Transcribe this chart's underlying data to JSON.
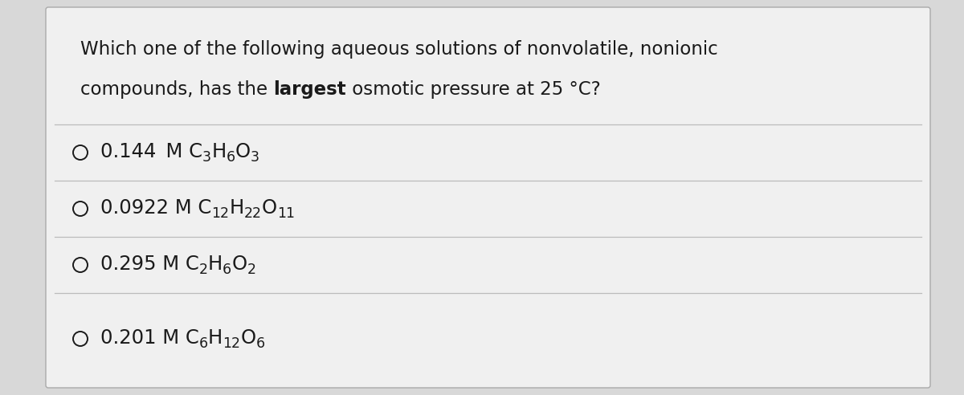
{
  "bg_color": "#d8d8d8",
  "card_bg": "#f0f0f0",
  "border_color": "#aaaaaa",
  "divider_color": "#bbbbbb",
  "text_color": "#1a1a1a",
  "question_line1": "Which one of the following aqueous solutions of nonvolatile, nonionic",
  "question_line2_pre": "compounds, has the ",
  "question_line2_bold": "largest",
  "question_line2_post": " osmotic pressure at 25 °C?",
  "options": [
    {
      "value": "0.144 M C",
      "formula": [
        {
          "t": "3",
          "s": true
        },
        {
          "t": "H",
          "s": false
        },
        {
          "t": "6",
          "s": true
        },
        {
          "t": "O",
          "s": false
        },
        {
          "t": "3",
          "s": true
        }
      ]
    },
    {
      "value": "0.0922 M C",
      "formula": [
        {
          "t": "12",
          "s": true
        },
        {
          "t": "H",
          "s": false
        },
        {
          "t": "22",
          "s": true
        },
        {
          "t": "O",
          "s": false
        },
        {
          "t": "11",
          "s": true
        }
      ]
    },
    {
      "value": "0.295 M C",
      "formula": [
        {
          "t": "2",
          "s": true
        },
        {
          "t": "H",
          "s": false
        },
        {
          "t": "6",
          "s": true
        },
        {
          "t": "O",
          "s": false
        },
        {
          "t": "2",
          "s": true
        }
      ]
    },
    {
      "value": "0.201 M C",
      "formula": [
        {
          "t": "6",
          "s": true
        },
        {
          "t": "H",
          "s": false
        },
        {
          "t": "12",
          "s": true
        },
        {
          "t": "O",
          "s": false
        },
        {
          "t": "6",
          "s": true
        }
      ]
    }
  ],
  "q_fontsize": 16.5,
  "opt_fontsize": 17.5,
  "sub_fontsize": 12.5
}
